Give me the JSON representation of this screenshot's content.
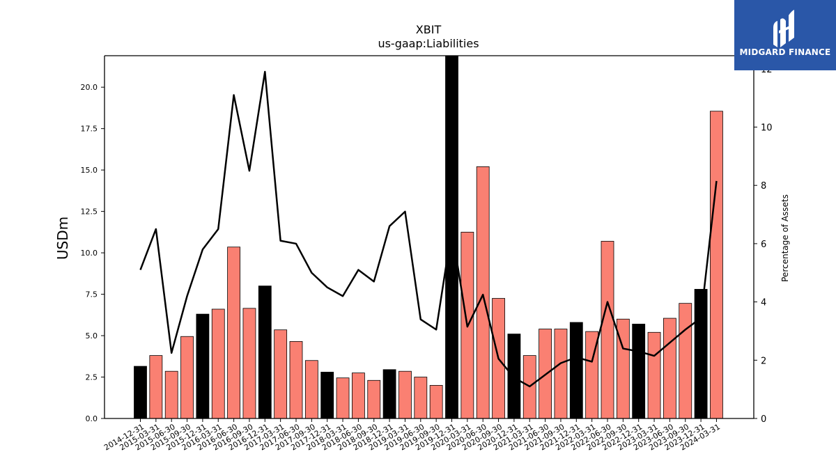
{
  "chart_data": {
    "type": "bar",
    "title": "XBIT",
    "subtitle": "us-gaap:Liabilities",
    "ylabel": "USDm",
    "y2label": "Percentage of Assets",
    "ylim": [
      0,
      21.9
    ],
    "y2lim": [
      0,
      12.45
    ],
    "yticks": [
      "0.0",
      "2.5",
      "5.0",
      "7.5",
      "10.0",
      "12.5",
      "15.0",
      "17.5",
      "20.0"
    ],
    "y2ticks": [
      "0",
      "2",
      "4",
      "6",
      "8",
      "10",
      "12"
    ],
    "categories": [
      "2014-12-31",
      "2015-03-31",
      "2015-06-30",
      "2015-09-30",
      "2015-12-31",
      "2016-03-31",
      "2016-06-30",
      "2016-09-30",
      "2016-12-31",
      "2017-03-31",
      "2017-06-30",
      "2017-09-30",
      "2017-12-31",
      "2018-03-31",
      "2018-06-30",
      "2018-09-30",
      "2018-12-31",
      "2019-03-31",
      "2019-06-30",
      "2019-09-30",
      "2019-12-31",
      "2020-03-31",
      "2020-06-30",
      "2020-09-30",
      "2020-12-31",
      "2021-03-31",
      "2021-06-30",
      "2021-09-30",
      "2021-12-31",
      "2022-03-31",
      "2022-06-30",
      "2022-09-30",
      "2022-12-31",
      "2023-03-31",
      "2023-06-30",
      "2023-09-30",
      "2023-12-31",
      "2024-03-31"
    ],
    "series": [
      {
        "type": "bar",
        "values": [
          3.15,
          3.8,
          2.85,
          4.95,
          6.3,
          6.6,
          10.35,
          6.65,
          8.0,
          5.35,
          4.65,
          3.5,
          2.8,
          2.45,
          2.75,
          2.3,
          2.95,
          2.85,
          2.5,
          2.0,
          21.9,
          11.25,
          15.2,
          7.25,
          5.1,
          3.8,
          5.4,
          5.4,
          5.8,
          5.25,
          10.7,
          6.0,
          5.7,
          5.2,
          6.05,
          6.95,
          7.8,
          18.55
        ],
        "colors_note": "year-end bars black, others salmon"
      },
      {
        "type": "line",
        "axis": "right",
        "values": [
          5.1,
          6.5,
          2.25,
          4.2,
          5.8,
          6.5,
          11.1,
          8.5,
          11.9,
          6.1,
          6.0,
          5.0,
          4.5,
          4.2,
          5.1,
          4.7,
          6.6,
          7.1,
          3.4,
          3.05,
          6.5,
          3.15,
          4.25,
          2.05,
          1.4,
          1.1,
          1.5,
          1.9,
          2.1,
          1.95,
          4.0,
          2.4,
          2.3,
          2.15,
          2.6,
          3.05,
          3.45,
          8.15
        ]
      }
    ],
    "grid": false
  },
  "colors": {
    "bar_default": "#fa8072",
    "bar_year_end": "#000000",
    "line": "#000000",
    "logo_bg": "#2a57a8"
  },
  "logo": {
    "text": "MIDGARD FINANCE",
    "icon": "midgard-logo-icon"
  }
}
